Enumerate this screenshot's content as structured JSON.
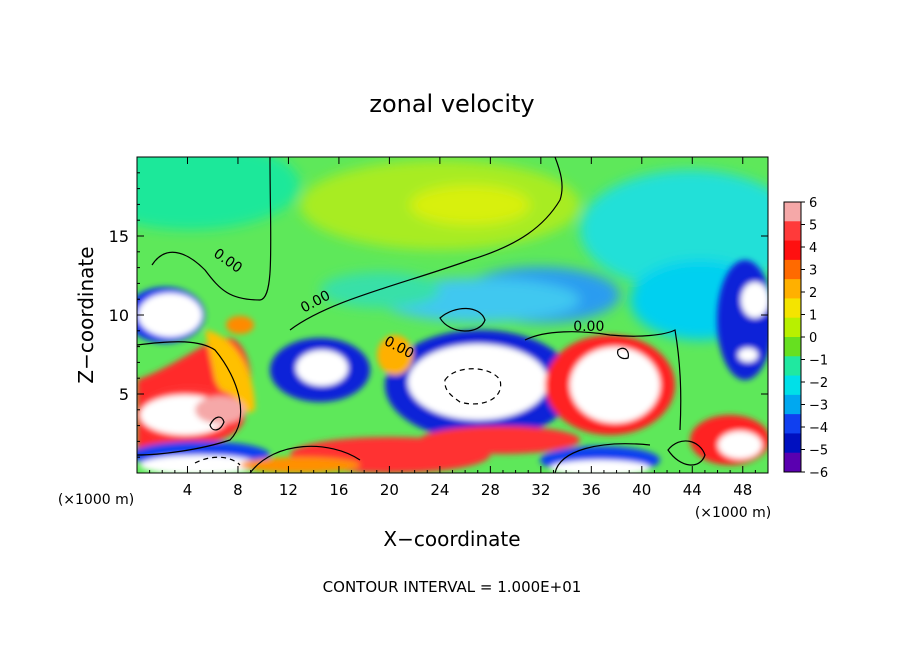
{
  "chart_data": {
    "type": "heatmap",
    "title": "zonal velocity",
    "xlabel": "X−coordinate",
    "ylabel": "Z−coordinate",
    "x_unit_left": "(×1000 m)",
    "x_unit_right": "(×1000 m)",
    "footer": "CONTOUR INTERVAL = 1.000E+01",
    "xlim": [
      0,
      50
    ],
    "ylim": [
      0,
      20
    ],
    "x_ticks": [
      4,
      8,
      12,
      16,
      20,
      24,
      28,
      32,
      36,
      40,
      44,
      48
    ],
    "y_ticks": [
      5,
      10,
      15
    ],
    "colorbar": {
      "ticks": [
        6,
        5,
        4,
        3,
        2,
        1,
        0,
        -1,
        -2,
        -3,
        -4,
        -5,
        -6
      ],
      "tick_labels": [
        "6",
        "5",
        "4",
        "3",
        "2",
        "1",
        "0",
        "−1",
        "−2",
        "−3",
        "−4",
        "−5",
        "−6"
      ],
      "colors": [
        "#f5a8a8",
        "#ff3a3a",
        "#ff1010",
        "#ff6a00",
        "#ffb000",
        "#f4e400",
        "#b8f000",
        "#66e020",
        "#20e8a0",
        "#00e0e8",
        "#00a8f0",
        "#1040f0",
        "#0010c0",
        "#5a00b0"
      ]
    },
    "contour_labels": [
      {
        "text": "0.00",
        "x": 7,
        "z": 13.2,
        "angle": 35
      },
      {
        "text": "0.00",
        "x": 14.3,
        "z": 10.6,
        "angle": -28
      },
      {
        "text": "0.00",
        "x": 20.6,
        "z": 7.7,
        "angle": 28
      },
      {
        "text": "0.00",
        "x": 35.8,
        "z": 9.0,
        "angle": 0
      }
    ]
  }
}
